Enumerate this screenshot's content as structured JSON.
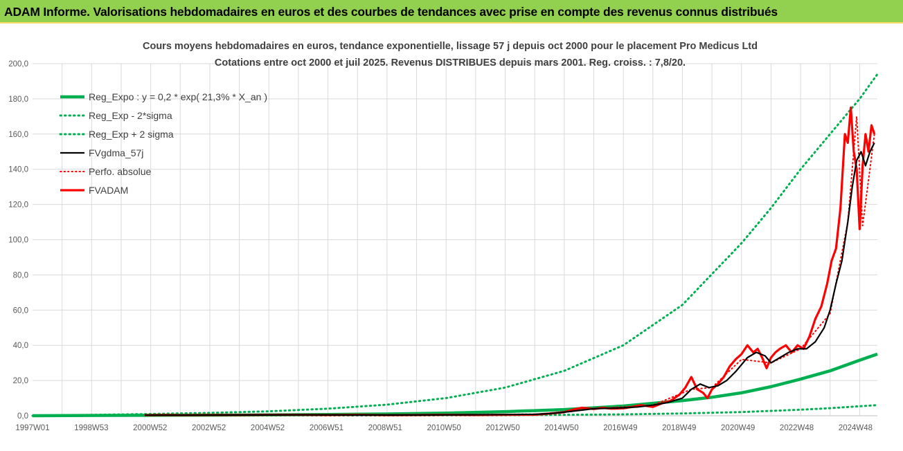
{
  "banner": {
    "title": "ADAM Informe. Valorisations hebdomadaires en euros et des courbes de tendances avec prise en compte des revenus connus distribués"
  },
  "colors": {
    "banner_bg": "#92d050",
    "trend": "#00b050",
    "smooth": "#000000",
    "perfo": "#ff0000",
    "fvadam": "#ff0000"
  },
  "chart_data": {
    "type": "line",
    "title": "Cours moyens hebdomadaires en euros, tendance exponentielle, lissage 57 j depuis oct 2000 pour le placement Pro Medicus Ltd",
    "subtitle": "Cotations entre oct 2000 et juil 2025. Revenus DISTRIBUES depuis mars 2001. Reg. croiss. : 7,8/20.",
    "xlabel": "",
    "ylabel": "",
    "ylim": [
      0,
      200
    ],
    "xlim": [
      1997.0,
      2025.6
    ],
    "y_ticks": [
      "0,0",
      "20,0",
      "40,0",
      "60,0",
      "80,0",
      "100,0",
      "120,0",
      "140,0",
      "160,0",
      "180,0",
      "200,0"
    ],
    "x_tick_labels": [
      "1997W01",
      "1998W53",
      "2000W52",
      "2002W52",
      "2004W52",
      "2006W51",
      "2008W51",
      "2010W50",
      "2012W50",
      "2014W50",
      "2016W49",
      "2018W49",
      "2020W49",
      "2022W48",
      "2024W48"
    ],
    "grid": true,
    "legend_position": "top-left",
    "series": [
      {
        "name": "Reg_Expo : y = 0,2 * exp( 21,3% *  X_an )",
        "style": "solid-thick",
        "x": [
          1997.0,
          1999.0,
          2001.0,
          2003.0,
          2005.0,
          2007.0,
          2009.0,
          2011.0,
          2013.0,
          2015.0,
          2017.0,
          2019.0,
          2020.0,
          2021.0,
          2022.0,
          2023.0,
          2024.0,
          2025.0,
          2025.6
        ],
        "values": [
          0.0,
          0.15,
          0.25,
          0.35,
          0.5,
          0.7,
          1.0,
          1.5,
          2.3,
          3.5,
          5.5,
          8.6,
          10.5,
          13.0,
          16.5,
          20.8,
          25.5,
          31.5,
          35.0
        ]
      },
      {
        "name": "Reg_Exp - 2*sigma",
        "style": "dotted",
        "x": [
          1997.0,
          2001.0,
          2005.0,
          2009.0,
          2013.0,
          2015.0,
          2017.0,
          2019.0,
          2021.0,
          2023.0,
          2024.0,
          2025.0,
          2025.6
        ],
        "values": [
          0.0,
          0.05,
          0.1,
          0.15,
          0.3,
          0.5,
          0.8,
          1.3,
          2.1,
          3.4,
          4.3,
          5.4,
          6.0
        ]
      },
      {
        "name": "Reg_Exp + 2 sigma",
        "style": "dotted",
        "x": [
          1997.0,
          2001.0,
          2003.0,
          2005.0,
          2007.0,
          2009.0,
          2011.0,
          2013.0,
          2015.0,
          2017.0,
          2019.0,
          2021.0,
          2022.0,
          2023.0,
          2024.0,
          2025.0,
          2025.6
        ],
        "values": [
          0.0,
          1.0,
          1.6,
          2.5,
          4.0,
          6.3,
          10.0,
          16.0,
          25.5,
          40.0,
          63.0,
          98.0,
          118.0,
          140.0,
          160.0,
          180.0,
          194.0
        ]
      },
      {
        "name": "FVgdma_57j",
        "style": "solid",
        "x": [
          2000.8,
          2002.0,
          2004.0,
          2006.0,
          2008.0,
          2010.0,
          2012.0,
          2014.0,
          2014.5,
          2015.0,
          2015.5,
          2016.0,
          2016.5,
          2017.0,
          2017.5,
          2018.0,
          2018.5,
          2019.0,
          2019.3,
          2019.6,
          2019.9,
          2020.2,
          2020.5,
          2020.8,
          2021.0,
          2021.2,
          2021.5,
          2021.8,
          2022.0,
          2022.3,
          2022.6,
          2022.9,
          2023.2,
          2023.5,
          2023.8,
          2024.0,
          2024.2,
          2024.4,
          2024.6,
          2024.75,
          2024.9,
          2025.05,
          2025.2,
          2025.35,
          2025.5
        ],
        "values": [
          0.3,
          0.3,
          0.4,
          0.5,
          0.4,
          0.4,
          0.5,
          0.8,
          1.2,
          2.0,
          3.0,
          4.0,
          4.2,
          4.5,
          5.0,
          6.0,
          7.5,
          10.0,
          15.0,
          18.0,
          16.0,
          17.0,
          20.0,
          25.0,
          29.0,
          33.0,
          36.0,
          34.0,
          30.0,
          33.0,
          36.0,
          38.0,
          38.0,
          42.0,
          50.0,
          60.0,
          75.0,
          88.0,
          110.0,
          130.0,
          145.0,
          150.0,
          142.0,
          150.0,
          155.0
        ]
      },
      {
        "name": "Perfo. absolue",
        "style": "dotted",
        "x": [
          2000.8,
          2005.0,
          2010.0,
          2014.5,
          2016.0,
          2018.0,
          2019.3,
          2020.0,
          2021.0,
          2022.0,
          2023.0,
          2024.0,
          2024.6,
          2024.9,
          2025.1,
          2025.5
        ],
        "values": [
          0.3,
          0.4,
          0.4,
          1.0,
          4.0,
          6.0,
          15.0,
          16.0,
          32.0,
          30.0,
          38.0,
          58.0,
          110.0,
          170.0,
          108.0,
          160.0
        ]
      },
      {
        "name": "FVADAM",
        "style": "solid-thick",
        "x": [
          2000.8,
          2001.5,
          2002.0,
          2003.0,
          2004.0,
          2005.0,
          2006.0,
          2007.0,
          2008.0,
          2009.0,
          2010.0,
          2011.0,
          2012.0,
          2013.0,
          2014.0,
          2014.5,
          2015.0,
          2015.3,
          2015.6,
          2016.0,
          2016.3,
          2016.6,
          2017.0,
          2017.3,
          2017.6,
          2018.0,
          2018.3,
          2018.6,
          2018.9,
          2019.1,
          2019.3,
          2019.5,
          2019.7,
          2019.85,
          2020.0,
          2020.2,
          2020.4,
          2020.6,
          2020.8,
          2021.0,
          2021.2,
          2021.4,
          2021.55,
          2021.7,
          2021.85,
          2022.0,
          2022.15,
          2022.3,
          2022.5,
          2022.7,
          2022.9,
          2023.1,
          2023.3,
          2023.5,
          2023.7,
          2023.9,
          2024.05,
          2024.2,
          2024.35,
          2024.5,
          2024.6,
          2024.7,
          2024.8,
          2024.9,
          2025.0,
          2025.1,
          2025.2,
          2025.3,
          2025.4,
          2025.5
        ],
        "values": [
          0.3,
          0.4,
          0.3,
          0.4,
          0.4,
          0.5,
          0.5,
          0.4,
          0.5,
          0.3,
          0.4,
          0.5,
          0.4,
          0.5,
          0.6,
          1.2,
          2.0,
          3.5,
          4.5,
          3.8,
          4.5,
          4.0,
          4.2,
          5.0,
          6.0,
          5.0,
          7.0,
          8.5,
          12.0,
          16.0,
          22.0,
          15.0,
          13.0,
          10.0,
          15.0,
          18.0,
          22.0,
          28.0,
          32.0,
          35.0,
          40.0,
          36.0,
          38.0,
          33.0,
          27.0,
          33.0,
          36.0,
          38.0,
          40.0,
          36.0,
          40.0,
          38.0,
          45.0,
          55.0,
          62.0,
          75.0,
          88.0,
          95.0,
          118.0,
          160.0,
          155.0,
          175.0,
          150.0,
          140.0,
          106.0,
          142.0,
          160.0,
          150.0,
          165.0,
          160.0
        ]
      }
    ]
  }
}
